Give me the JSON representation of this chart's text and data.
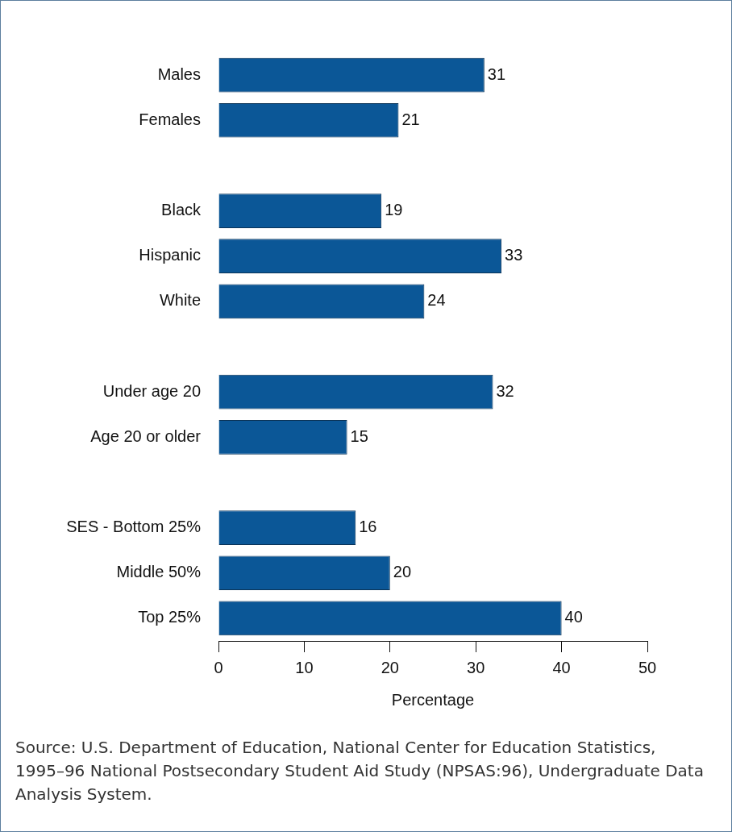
{
  "chart_data": {
    "type": "bar",
    "orientation": "horizontal",
    "xlabel": "Percentage",
    "categories": [
      "Males",
      "Females",
      null,
      "Black",
      "Hispanic",
      "White",
      null,
      "Under age 20",
      "Age 20 or older",
      null,
      "SES - Bottom 25%",
      "Middle 50%",
      "Top 25%"
    ],
    "values": [
      31,
      21,
      null,
      19,
      33,
      24,
      null,
      32,
      15,
      null,
      16,
      20,
      40
    ],
    "color": "#0b5797",
    "xlim": [
      0,
      50
    ],
    "xticks": [
      0,
      10,
      20,
      30,
      40,
      50
    ],
    "grid": false,
    "legend": false,
    "data_labels": true,
    "annotations": [
      "Source: U.S. Department of Education, National Center for Education Statistics, 1995–96 National Postsecondary Student Aid Study (NPSAS:96), Undergraduate Data Analysis System."
    ]
  }
}
